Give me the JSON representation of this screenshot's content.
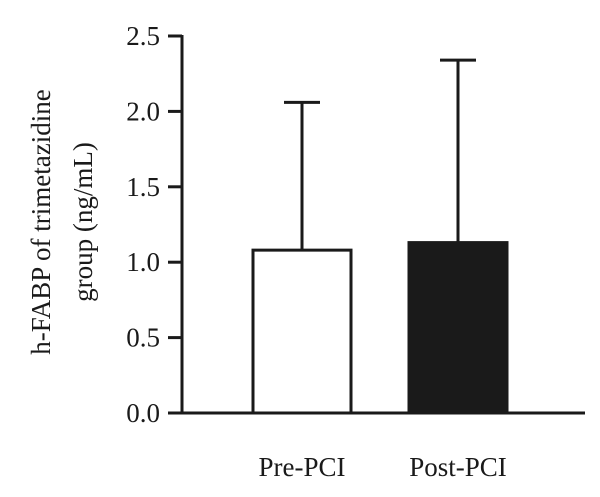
{
  "chart_data": {
    "type": "bar",
    "title": "",
    "xlabel": "",
    "ylabel_lines": [
      "h-FABP of trimetazidine",
      "group (ng/mL)"
    ],
    "ylim": [
      0,
      2.5
    ],
    "yticks": [
      0.0,
      0.5,
      1.0,
      1.5,
      2.0,
      2.5
    ],
    "ytick_labels": [
      "0.0",
      "0.5",
      "1.0",
      "1.5",
      "2.0",
      "2.5"
    ],
    "categories": [
      "Pre-PCI",
      "Post-PCI"
    ],
    "values": [
      1.08,
      1.13
    ],
    "error_upper": [
      2.06,
      2.34
    ],
    "bar_fills": [
      "#ffffff",
      "#1a1a1a"
    ],
    "grid": false
  }
}
